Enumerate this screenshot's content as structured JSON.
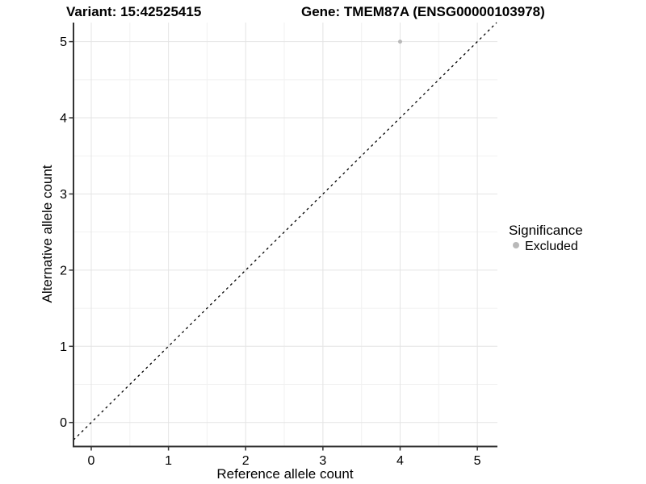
{
  "page": {
    "background": "#ffffff"
  },
  "chart_data": {
    "type": "scatter",
    "titles": {
      "left": "Variant: 15:42525415",
      "right": "Gene: TMEM87A (ENSG00000103978)"
    },
    "xlabel": "Reference allele count",
    "ylabel": "Alternative allele count",
    "xlim": [
      -0.23,
      5.26
    ],
    "ylim": [
      -0.31,
      5.25
    ],
    "xticks": [
      0,
      1,
      2,
      3,
      4,
      5
    ],
    "yticks": [
      0,
      1,
      2,
      3,
      4,
      5
    ],
    "minor_step": 0.5,
    "grid": "major and minor gridlines, both axes",
    "identity_line": {
      "slope": 1,
      "intercept": 0,
      "style": "dashed",
      "color": "#000000"
    },
    "series": [
      {
        "name": "Excluded",
        "color": "#b9b9b9",
        "points": [
          {
            "x": 4,
            "y": 5
          }
        ]
      }
    ],
    "legend": {
      "title": "Significance",
      "position": "right",
      "entries": [
        {
          "label": "Excluded",
          "color": "#b9b9b9"
        }
      ]
    },
    "colors": {
      "grid_major": "#e4e4e4",
      "grid_minor": "#f1f1f1",
      "axis_line": "#333333",
      "tick_mark": "#333333",
      "text": "#000000"
    }
  }
}
